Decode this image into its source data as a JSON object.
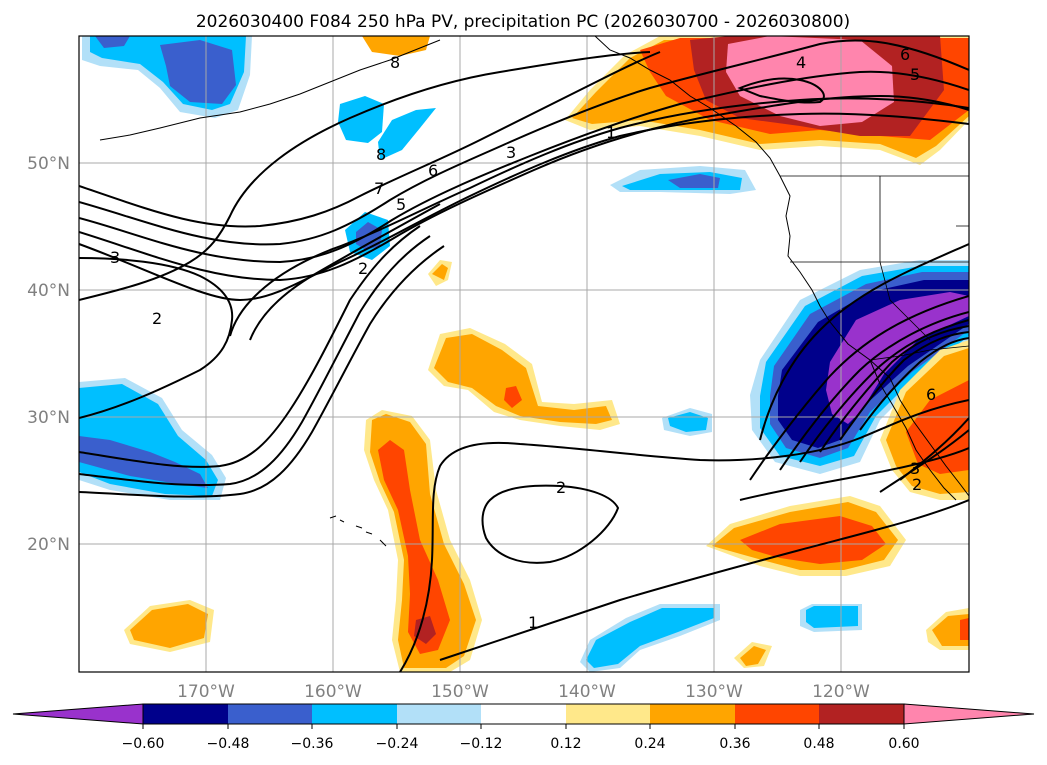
{
  "title": "2026030400 F084 250 hPa PV, precipitation PC (2026030700 - 2026030800)",
  "axes": {
    "lat_labels": [
      "50°N",
      "40°N",
      "30°N",
      "20°N"
    ],
    "lon_labels": [
      "170°W",
      "160°W",
      "150°W",
      "140°W",
      "130°W",
      "120°W"
    ]
  },
  "pv_contour_labels": [
    "1",
    "2",
    "3",
    "4",
    "5",
    "6",
    "7",
    "8"
  ],
  "contour_label_instances": [
    {
      "id": "label-8-north",
      "value": "8"
    },
    {
      "id": "label-8-aleutian",
      "value": "8"
    },
    {
      "id": "label-7-center",
      "value": "7"
    },
    {
      "id": "label-6-center",
      "value": "6"
    },
    {
      "id": "label-5-center",
      "value": "5"
    },
    {
      "id": "label-3-center",
      "value": "3"
    },
    {
      "id": "label-2-center",
      "value": "2"
    },
    {
      "id": "label-1-north",
      "value": "1"
    },
    {
      "id": "label-3-west",
      "value": "3"
    },
    {
      "id": "label-2-west",
      "value": "2"
    },
    {
      "id": "label-2-subtropic",
      "value": "2"
    },
    {
      "id": "label-1-south",
      "value": "1"
    },
    {
      "id": "label-4-ne",
      "value": "4"
    },
    {
      "id": "label-5-ne",
      "value": "5"
    },
    {
      "id": "label-6-ne",
      "value": "6"
    },
    {
      "id": "label-6-se",
      "value": "6"
    },
    {
      "id": "label-3-se",
      "value": "3"
    },
    {
      "id": "label-2-se",
      "value": "2"
    }
  ],
  "colorbar": {
    "ticks": [
      "−0.60",
      "−0.48",
      "−0.36",
      "−0.24",
      "−0.12",
      "0.12",
      "0.24",
      "0.36",
      "0.48",
      "0.60"
    ],
    "colors": [
      "#9932cc",
      "#00008b",
      "#3a5fcd",
      "#00bfff",
      "#b2e0f8",
      "#ffffff",
      "#ffe88a",
      "#ffa500",
      "#ff4500",
      "#b22222",
      "#ff85ad"
    ]
  },
  "colors": {
    "neg_purple": "#9932cc",
    "neg_navy": "#00008b",
    "neg_blue": "#3a5fcd",
    "neg_sky": "#00bfff",
    "neg_pale": "#b2e0f8",
    "pos_pale": "#ffe88a",
    "pos_orange": "#ffa500",
    "pos_red": "#ff4500",
    "pos_darkred": "#b22222",
    "pos_pink": "#ff85ad",
    "grid": "#a8a8a8",
    "axis_label": "#808080"
  }
}
